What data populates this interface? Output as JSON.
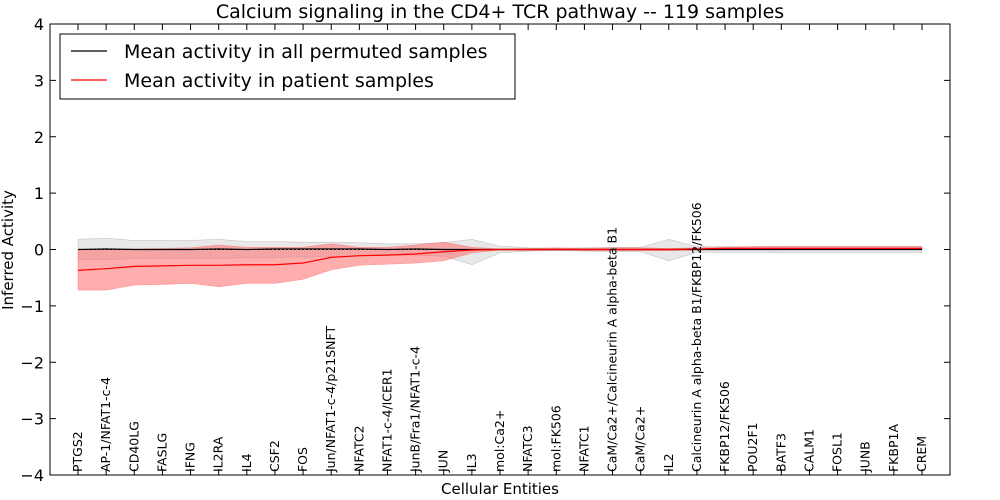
{
  "chart_data": {
    "type": "line",
    "title": "Calcium signaling in the CD4+ TCR pathway -- 119 samples",
    "xlabel": "Cellular Entities",
    "ylabel": "Inferred Activity",
    "ylim": [
      -4,
      4
    ],
    "yticks": [
      -4,
      -3,
      -2,
      -1,
      0,
      1,
      2,
      3,
      4
    ],
    "ytick_labels": [
      "−4",
      "−3",
      "−2",
      "−1",
      "0",
      "1",
      "2",
      "3",
      "4"
    ],
    "legend_position": "top-left",
    "categories": [
      "PTGS2",
      "AP-1/NFAT1-c-4",
      "CD40LG",
      "FASLG",
      "IFNG",
      "IL2RA",
      "IL4",
      "CSF2",
      "FOS",
      "Jun/NFAT1-c-4/p21SNFT",
      "NFATC2",
      "NFAT1-c-4/ICER1",
      "JunB/Fra1/NFAT1-c-4",
      "JUN",
      "IL3",
      "mol:Ca2+",
      "NFATC3",
      "mol:FK506",
      "NFATC1",
      "CaM/Ca2+/Calcineurin A alpha-beta B1",
      "CaM/Ca2+",
      "IL2",
      "Calcineurin A alpha-beta B1/FKBP12/FK506",
      "FKBP12/FK506",
      "POU2F1",
      "BATF3",
      "CALM1",
      "FOSL1",
      "JUNB",
      "FKBP1A",
      "CREM"
    ],
    "series": [
      {
        "name": "Mean activity in all permuted samples",
        "color": "#000000",
        "values": [
          0.0,
          0.01,
          0.0,
          0.0,
          0.0,
          0.01,
          0.0,
          0.01,
          0.01,
          0.01,
          0.01,
          0.0,
          0.01,
          0.0,
          0.0,
          0.0,
          0.0,
          0.0,
          0.0,
          0.0,
          0.0,
          0.0,
          0.0,
          0.0,
          0.0,
          0.0,
          0.0,
          0.0,
          0.0,
          0.0,
          0.0
        ],
        "band_upper": [
          0.18,
          0.2,
          0.16,
          0.16,
          0.16,
          0.18,
          0.14,
          0.14,
          0.13,
          0.13,
          0.12,
          0.1,
          0.1,
          0.12,
          0.18,
          0.06,
          0.03,
          0.02,
          0.03,
          0.04,
          0.04,
          0.18,
          0.05,
          0.05,
          0.05,
          0.06,
          0.06,
          0.06,
          0.06,
          0.06,
          0.06
        ],
        "band_lower": [
          -0.18,
          -0.18,
          -0.16,
          -0.16,
          -0.16,
          -0.16,
          -0.14,
          -0.14,
          -0.13,
          -0.13,
          -0.12,
          -0.1,
          -0.1,
          -0.12,
          -0.27,
          -0.06,
          -0.03,
          -0.02,
          -0.03,
          -0.04,
          -0.04,
          -0.2,
          -0.05,
          -0.05,
          -0.05,
          -0.06,
          -0.06,
          -0.06,
          -0.06,
          -0.06,
          -0.06
        ],
        "band_color": "#d8d8d8"
      },
      {
        "name": "Mean activity in patient samples",
        "color": "#ff0000",
        "values": [
          -0.37,
          -0.34,
          -0.3,
          -0.29,
          -0.28,
          -0.28,
          -0.27,
          -0.27,
          -0.24,
          -0.14,
          -0.11,
          -0.1,
          -0.08,
          -0.04,
          -0.01,
          0.0,
          0.0,
          0.0,
          0.0,
          0.0,
          0.0,
          0.0,
          0.01,
          0.02,
          0.02,
          0.02,
          0.02,
          0.02,
          0.02,
          0.02,
          0.02
        ],
        "band_upper": [
          -0.02,
          0.0,
          0.01,
          0.02,
          0.03,
          0.08,
          0.04,
          0.04,
          0.04,
          0.1,
          0.04,
          0.04,
          0.08,
          0.13,
          0.04,
          0.01,
          0.02,
          0.03,
          0.02,
          0.03,
          0.03,
          0.02,
          0.03,
          0.04,
          0.05,
          0.05,
          0.05,
          0.05,
          0.05,
          0.05,
          0.05
        ],
        "band_lower": [
          -0.72,
          -0.72,
          -0.63,
          -0.62,
          -0.6,
          -0.66,
          -0.6,
          -0.6,
          -0.53,
          -0.36,
          -0.28,
          -0.26,
          -0.24,
          -0.2,
          -0.06,
          -0.01,
          -0.02,
          -0.01,
          -0.02,
          -0.02,
          -0.02,
          -0.02,
          -0.01,
          0.0,
          0.0,
          0.0,
          0.0,
          0.0,
          0.0,
          0.0,
          0.0
        ],
        "band_color": "#ff6b6b"
      }
    ]
  }
}
